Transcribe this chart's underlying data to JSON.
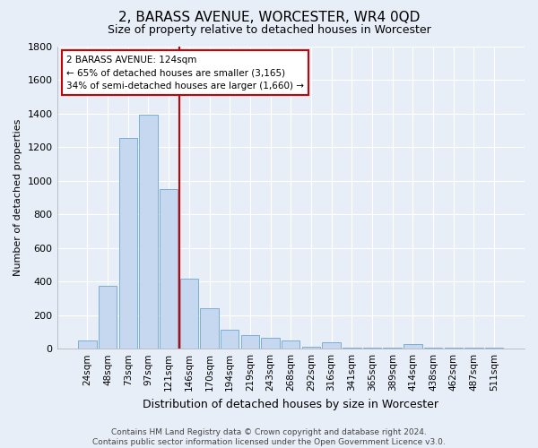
{
  "title": "2, BARASS AVENUE, WORCESTER, WR4 0QD",
  "subtitle": "Size of property relative to detached houses in Worcester",
  "xlabel": "Distribution of detached houses by size in Worcester",
  "ylabel": "Number of detached properties",
  "bar_color": "#c5d8ef",
  "bar_edge_color": "#7bafd4",
  "bar_categories": [
    "24sqm",
    "48sqm",
    "73sqm",
    "97sqm",
    "121sqm",
    "146sqm",
    "170sqm",
    "194sqm",
    "219sqm",
    "243sqm",
    "268sqm",
    "292sqm",
    "316sqm",
    "341sqm",
    "365sqm",
    "389sqm",
    "414sqm",
    "438sqm",
    "462sqm",
    "487sqm",
    "511sqm"
  ],
  "bar_values": [
    50,
    375,
    1255,
    1390,
    950,
    415,
    240,
    115,
    80,
    65,
    50,
    10,
    40,
    8,
    5,
    5,
    25,
    5,
    5,
    5,
    5
  ],
  "ylim": [
    0,
    1800
  ],
  "yticks": [
    0,
    200,
    400,
    600,
    800,
    1000,
    1200,
    1400,
    1600,
    1800
  ],
  "red_line_x": 4.5,
  "annotation_line1": "2 BARASS AVENUE: 124sqm",
  "annotation_line2": "← 65% of detached houses are smaller (3,165)",
  "annotation_line3": "34% of semi-detached houses are larger (1,660) →",
  "annotation_box_color": "#ffffff",
  "annotation_box_edge_color": "#cc0000",
  "footer_line1": "Contains HM Land Registry data © Crown copyright and database right 2024.",
  "footer_line2": "Contains public sector information licensed under the Open Government Licence v3.0.",
  "background_color": "#e8eef7",
  "plot_bg_color": "#e8eef7",
  "title_fontsize": 11,
  "subtitle_fontsize": 9,
  "ylabel_fontsize": 8,
  "xlabel_fontsize": 9
}
